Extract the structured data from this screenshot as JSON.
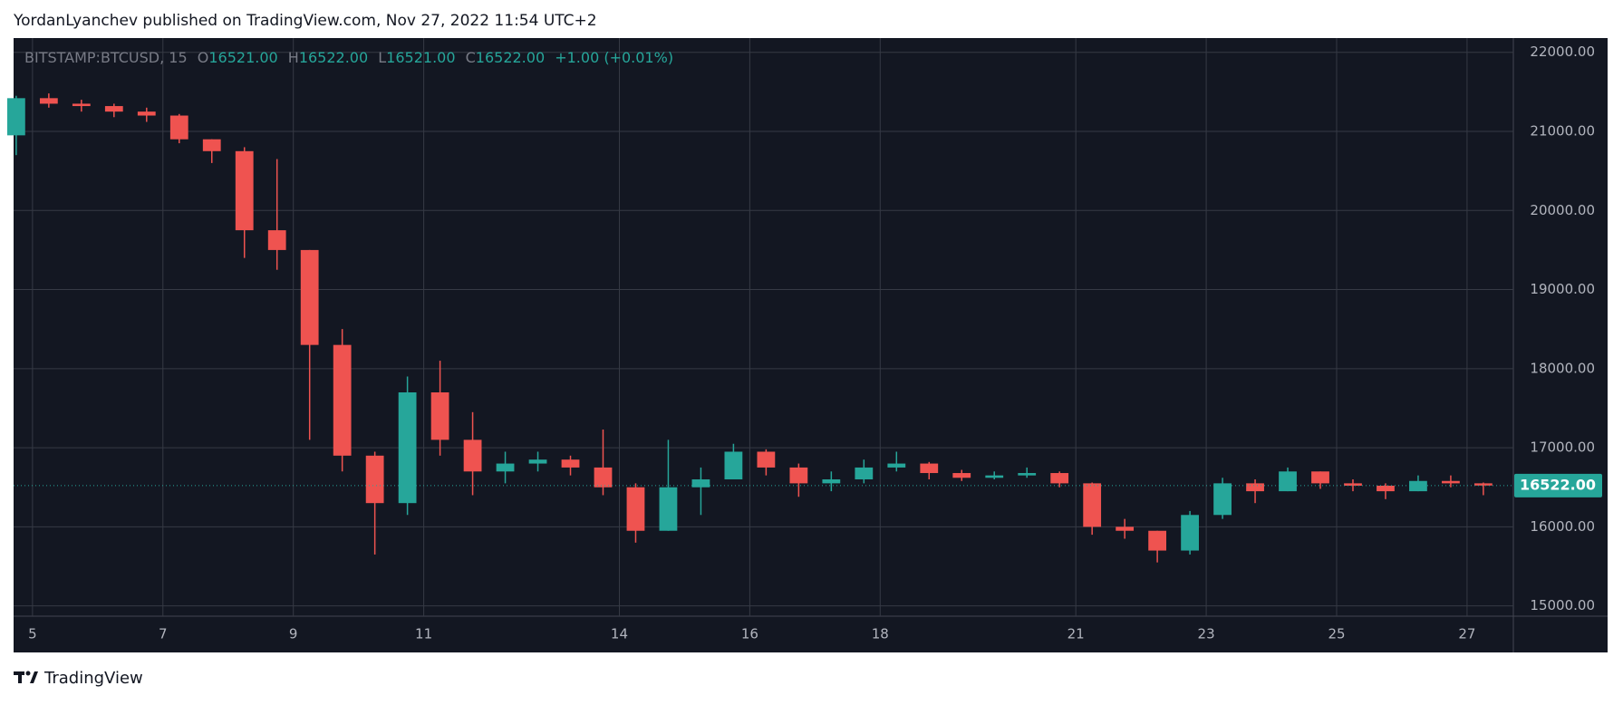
{
  "header": "YordanLyanchev published on TradingView.com, Nov 27, 2022 11:54 UTC+2",
  "footer": "TradingView",
  "chart_data": {
    "type": "candlestick",
    "legend": {
      "symbol": "BITSTAMP:BTCUSD, 15",
      "fields": [
        {
          "key": "O",
          "text": "16521.00"
        },
        {
          "key": "H",
          "text": "16522.00"
        },
        {
          "key": "L",
          "text": "16521.00"
        },
        {
          "key": "C",
          "text": "16522.00"
        }
      ],
      "change": "+1.00 (+0.01%)"
    },
    "x": [
      4.75,
      5.25,
      5.75,
      6.25,
      6.75,
      7.25,
      7.75,
      8.25,
      8.75,
      9.25,
      9.75,
      10.25,
      10.75,
      11.25,
      11.75,
      12.25,
      12.75,
      13.25,
      13.75,
      14.25,
      14.75,
      15.25,
      15.75,
      16.25,
      16.75,
      17.25,
      17.75,
      18.25,
      18.75,
      19.25,
      19.75,
      20.25,
      20.75,
      21.25,
      21.75,
      22.25,
      22.75,
      23.25,
      23.75,
      24.25,
      24.75,
      25.25,
      25.75,
      26.25,
      26.75,
      27.25
    ],
    "open": [
      20950,
      21420,
      21350,
      21320,
      21250,
      21200,
      20900,
      20750,
      19750,
      19500,
      18300,
      16900,
      16300,
      17700,
      17100,
      16700,
      16800,
      16850,
      16750,
      16500,
      15950,
      16500,
      16600,
      16950,
      16750,
      16550,
      16600,
      16750,
      16800,
      16680,
      16620,
      16650,
      16680,
      16550,
      16000,
      15950,
      15700,
      16150,
      16550,
      16450,
      16700,
      16550,
      16520,
      16450,
      16580,
      16550
    ],
    "high": [
      21450,
      21480,
      21400,
      21350,
      21300,
      21220,
      20900,
      20800,
      20650,
      19500,
      18500,
      16950,
      17900,
      18100,
      17450,
      16950,
      16950,
      16900,
      17230,
      16550,
      17100,
      16750,
      17050,
      16980,
      16800,
      16700,
      16850,
      16950,
      16820,
      16720,
      16700,
      16750,
      16700,
      16560,
      16100,
      15950,
      16200,
      16620,
      16600,
      16750,
      16700,
      16600,
      16550,
      16650,
      16650,
      16560
    ],
    "low": [
      20700,
      21300,
      21250,
      21180,
      21120,
      20850,
      20600,
      19400,
      19250,
      17100,
      16700,
      15650,
      16150,
      16900,
      16400,
      16550,
      16700,
      16650,
      16400,
      15800,
      15950,
      16150,
      16600,
      16650,
      16380,
      16450,
      16550,
      16700,
      16600,
      16580,
      16600,
      16620,
      16500,
      15900,
      15850,
      15550,
      15650,
      16100,
      16300,
      16450,
      16480,
      16450,
      16350,
      16450,
      16500,
      16400
    ],
    "close": [
      21420,
      21350,
      21320,
      21250,
      21200,
      20900,
      20750,
      19750,
      19500,
      18300,
      16900,
      16300,
      17700,
      17100,
      16700,
      16800,
      16850,
      16750,
      16500,
      15950,
      16500,
      16600,
      16950,
      16750,
      16550,
      16600,
      16750,
      16800,
      16680,
      16620,
      16650,
      16680,
      16550,
      16000,
      15950,
      15700,
      16150,
      16550,
      16450,
      16700,
      16550,
      16520,
      16450,
      16580,
      16550,
      16522
    ],
    "up_color": "#26a69a",
    "down_color": "#ef5350",
    "xlim": [
      4.71,
      27.71
    ],
    "xticks": [
      5,
      7,
      9,
      11,
      14,
      16,
      18,
      21,
      23,
      25,
      27
    ],
    "ylim": [
      14870,
      22180
    ],
    "yticks": [
      {
        "value": 15000,
        "label": "15000.00"
      },
      {
        "value": 16000,
        "label": "16000.00"
      },
      {
        "value": 17000,
        "label": "17000.00"
      },
      {
        "value": 18000,
        "label": "18000.00"
      },
      {
        "value": 19000,
        "label": "19000.00"
      },
      {
        "value": 20000,
        "label": "20000.00"
      },
      {
        "value": 21000,
        "label": "21000.00"
      },
      {
        "value": 22000,
        "label": "22000.00"
      }
    ],
    "last_price": {
      "value": 16522,
      "label": "16522.00"
    },
    "grid": true
  }
}
